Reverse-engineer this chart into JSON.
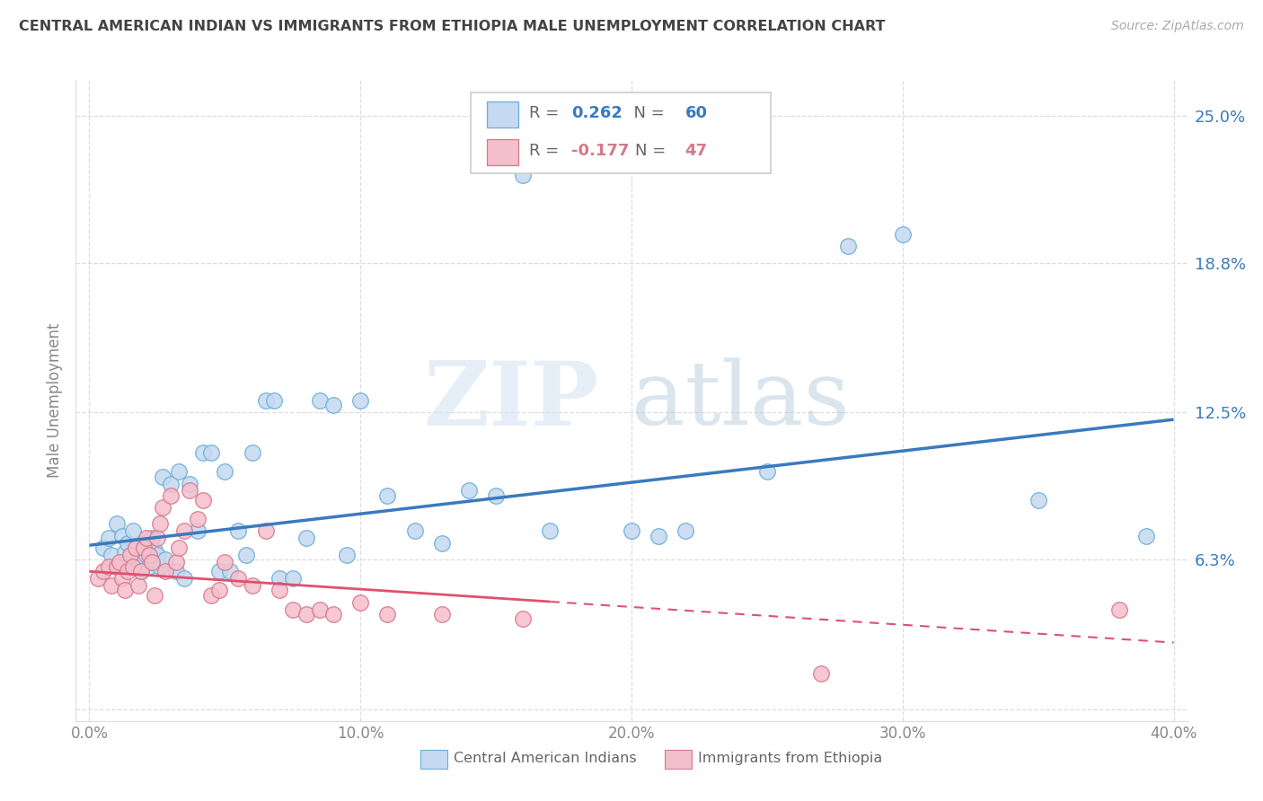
{
  "title": "CENTRAL AMERICAN INDIAN VS IMMIGRANTS FROM ETHIOPIA MALE UNEMPLOYMENT CORRELATION CHART",
  "source": "Source: ZipAtlas.com",
  "ylabel": "Male Unemployment",
  "y_ticks": [
    0.0,
    0.063,
    0.125,
    0.188,
    0.25
  ],
  "y_tick_labels": [
    "",
    "6.3%",
    "12.5%",
    "18.8%",
    "25.0%"
  ],
  "x_ticks": [
    0.0,
    0.1,
    0.2,
    0.3,
    0.4
  ],
  "x_tick_labels": [
    "0.0%",
    "10.0%",
    "20.0%",
    "30.0%",
    "40.0%"
  ],
  "xlim": [
    -0.005,
    0.405
  ],
  "ylim": [
    -0.005,
    0.265
  ],
  "legend1_r": "0.262",
  "legend1_n": "60",
  "legend2_r": "-0.177",
  "legend2_n": "47",
  "blue_fill": "#c5d9f0",
  "blue_edge": "#6baed6",
  "pink_fill": "#f4bfcc",
  "pink_edge": "#d6788a",
  "blue_line_color": "#3a7abf",
  "pink_line_color": "#e05070",
  "watermark_zip": "ZIP",
  "watermark_atlas": "atlas",
  "blue_trend_start": 0.069,
  "blue_trend_end": 0.122,
  "pink_trend_start": 0.058,
  "pink_trend_end": 0.028,
  "blue_x": [
    0.005,
    0.007,
    0.008,
    0.01,
    0.01,
    0.012,
    0.013,
    0.014,
    0.015,
    0.016,
    0.017,
    0.018,
    0.019,
    0.02,
    0.021,
    0.022,
    0.023,
    0.024,
    0.025,
    0.026,
    0.027,
    0.028,
    0.03,
    0.032,
    0.033,
    0.035,
    0.037,
    0.04,
    0.042,
    0.045,
    0.048,
    0.05,
    0.052,
    0.055,
    0.058,
    0.06,
    0.065,
    0.068,
    0.07,
    0.075,
    0.08,
    0.085,
    0.09,
    0.095,
    0.1,
    0.11,
    0.12,
    0.13,
    0.14,
    0.15,
    0.16,
    0.17,
    0.2,
    0.21,
    0.22,
    0.25,
    0.28,
    0.3,
    0.35,
    0.39
  ],
  "blue_y": [
    0.068,
    0.072,
    0.065,
    0.078,
    0.06,
    0.073,
    0.066,
    0.07,
    0.062,
    0.075,
    0.068,
    0.063,
    0.058,
    0.07,
    0.065,
    0.06,
    0.072,
    0.067,
    0.065,
    0.06,
    0.098,
    0.063,
    0.095,
    0.058,
    0.1,
    0.055,
    0.095,
    0.075,
    0.108,
    0.108,
    0.058,
    0.1,
    0.058,
    0.075,
    0.065,
    0.108,
    0.13,
    0.13,
    0.055,
    0.055,
    0.072,
    0.13,
    0.128,
    0.065,
    0.13,
    0.09,
    0.075,
    0.07,
    0.092,
    0.09,
    0.225,
    0.075,
    0.075,
    0.073,
    0.075,
    0.1,
    0.195,
    0.2,
    0.088,
    0.073
  ],
  "pink_x": [
    0.003,
    0.005,
    0.007,
    0.008,
    0.01,
    0.011,
    0.012,
    0.013,
    0.014,
    0.015,
    0.016,
    0.017,
    0.018,
    0.019,
    0.02,
    0.021,
    0.022,
    0.023,
    0.024,
    0.025,
    0.026,
    0.027,
    0.028,
    0.03,
    0.032,
    0.033,
    0.035,
    0.037,
    0.04,
    0.042,
    0.045,
    0.048,
    0.05,
    0.055,
    0.06,
    0.065,
    0.07,
    0.075,
    0.08,
    0.085,
    0.09,
    0.1,
    0.11,
    0.13,
    0.16,
    0.27,
    0.38
  ],
  "pink_y": [
    0.055,
    0.058,
    0.06,
    0.052,
    0.06,
    0.062,
    0.055,
    0.05,
    0.058,
    0.065,
    0.06,
    0.068,
    0.052,
    0.058,
    0.068,
    0.072,
    0.065,
    0.062,
    0.048,
    0.072,
    0.078,
    0.085,
    0.058,
    0.09,
    0.062,
    0.068,
    0.075,
    0.092,
    0.08,
    0.088,
    0.048,
    0.05,
    0.062,
    0.055,
    0.052,
    0.075,
    0.05,
    0.042,
    0.04,
    0.042,
    0.04,
    0.045,
    0.04,
    0.04,
    0.038,
    0.015,
    0.042
  ]
}
